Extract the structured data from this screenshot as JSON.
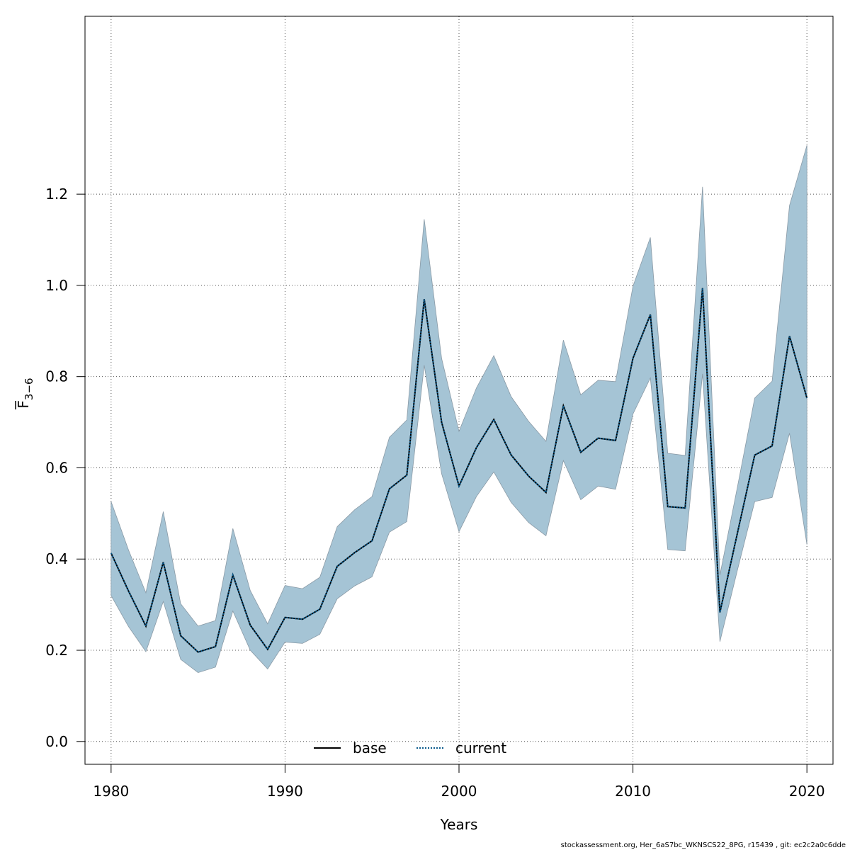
{
  "chart_data": {
    "type": "line",
    "xlabel": "Years",
    "ylabel": {
      "base": "F",
      "subscript": "3−6"
    },
    "xlim": [
      1978.5,
      2021.5
    ],
    "ylim": [
      -0.05,
      1.59
    ],
    "xticks": [
      1980,
      1990,
      2000,
      2010,
      2020
    ],
    "yticks": [
      0.0,
      0.2,
      0.4,
      0.6,
      0.8,
      1.0,
      1.2
    ],
    "ytick_labels": [
      "0.0",
      "0.2",
      "0.4",
      "0.6",
      "0.8",
      "1.0",
      "1.2"
    ],
    "grid": true,
    "legend_position": "bottom-center",
    "x": [
      1980,
      1981,
      1982,
      1983,
      1984,
      1985,
      1986,
      1987,
      1988,
      1989,
      1990,
      1991,
      1992,
      1993,
      1994,
      1995,
      1996,
      1997,
      1998,
      1999,
      2000,
      2001,
      2002,
      2003,
      2004,
      2005,
      2006,
      2007,
      2008,
      2009,
      2010,
      2011,
      2012,
      2013,
      2014,
      2015,
      2016,
      2017,
      2018,
      2019,
      2020
    ],
    "series": [
      {
        "name": "base",
        "line_style": "solid",
        "color": "#000000",
        "values": [
          0.413,
          0.33,
          0.253,
          0.393,
          0.232,
          0.196,
          0.208,
          0.365,
          0.255,
          0.202,
          0.272,
          0.268,
          0.29,
          0.384,
          0.414,
          0.44,
          0.554,
          0.584,
          0.97,
          0.7,
          0.56,
          0.644,
          0.706,
          0.628,
          0.582,
          0.546,
          0.736,
          0.634,
          0.665,
          0.66,
          0.84,
          0.936,
          0.515,
          0.512,
          0.994,
          0.283,
          0.456,
          0.628,
          0.648,
          0.889,
          0.753
        ]
      },
      {
        "name": "current",
        "line_style": "dotted",
        "color": "#0a5a8c",
        "values": [
          0.413,
          0.33,
          0.253,
          0.393,
          0.232,
          0.196,
          0.208,
          0.365,
          0.255,
          0.202,
          0.272,
          0.268,
          0.29,
          0.384,
          0.414,
          0.44,
          0.554,
          0.584,
          0.97,
          0.7,
          0.56,
          0.644,
          0.706,
          0.628,
          0.582,
          0.546,
          0.736,
          0.634,
          0.665,
          0.66,
          0.84,
          0.936,
          0.515,
          0.512,
          0.994,
          0.283,
          0.456,
          0.628,
          0.648,
          0.889,
          0.753
        ]
      }
    ],
    "confidence_band": {
      "fill_color": "#a5c4d5",
      "edge_color": "#8a9aa6",
      "lower": [
        0.32,
        0.252,
        0.197,
        0.307,
        0.18,
        0.151,
        0.163,
        0.286,
        0.2,
        0.159,
        0.218,
        0.215,
        0.235,
        0.313,
        0.341,
        0.361,
        0.459,
        0.482,
        0.825,
        0.587,
        0.46,
        0.537,
        0.591,
        0.524,
        0.48,
        0.451,
        0.616,
        0.53,
        0.56,
        0.553,
        0.718,
        0.797,
        0.421,
        0.418,
        0.806,
        0.219,
        0.375,
        0.526,
        0.535,
        0.676,
        0.432
      ],
      "upper": [
        0.526,
        0.42,
        0.326,
        0.504,
        0.302,
        0.253,
        0.265,
        0.467,
        0.331,
        0.258,
        0.342,
        0.335,
        0.36,
        0.471,
        0.508,
        0.537,
        0.667,
        0.705,
        1.145,
        0.84,
        0.68,
        0.775,
        0.846,
        0.756,
        0.702,
        0.658,
        0.88,
        0.76,
        0.792,
        0.789,
        0.998,
        1.105,
        0.632,
        0.627,
        1.216,
        0.365,
        0.557,
        0.753,
        0.79,
        1.175,
        1.307
      ]
    }
  },
  "footer_text": "stockassessment.org, Her_6aS7bc_WKNSCS22_8PG, r15439 , git: ec2c2a0c6dde"
}
